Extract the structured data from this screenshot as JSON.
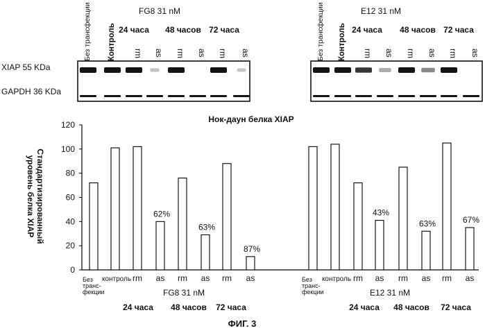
{
  "blots": [
    {
      "concentration": "FG8 31 nM",
      "lane_labels": [
        "Без трансфекции",
        "Контроль",
        "rm",
        "as",
        "rm",
        "as",
        "rm",
        "as"
      ],
      "group_labels": [
        "24 часа",
        "48 часов",
        "72 часа"
      ],
      "xiap_band_intensity": [
        1,
        1,
        1,
        0.05,
        1,
        0,
        1,
        0.02
      ],
      "gapdh_band_intensity": [
        1,
        1,
        1,
        1,
        1,
        1,
        1,
        1
      ]
    },
    {
      "concentration": "E12 31 nM",
      "lane_labels": [
        "Без трансфекции",
        "Контроль",
        "rm",
        "as",
        "rm",
        "as",
        "rm",
        "as"
      ],
      "group_labels": [
        "24 часа",
        "48 часов",
        "72 часа"
      ],
      "xiap_band_intensity": [
        1,
        1,
        0.85,
        0.35,
        1,
        0.5,
        1,
        0
      ],
      "gapdh_band_intensity": [
        1,
        1,
        1,
        1,
        1,
        1,
        1,
        1
      ]
    }
  ],
  "blot_row_labels": {
    "xiap": "XIAP 55 KDa",
    "gapdh": "GAPDH 36 KDa"
  },
  "chart_data": {
    "type": "bar",
    "title": "Нок-даун белка XIAP",
    "ylabel_lines": [
      "Стандартизированный",
      "уровень белка XIAP"
    ],
    "xlabel": "",
    "ylim": [
      0,
      120
    ],
    "yticks": [
      0,
      20,
      40,
      60,
      80,
      100,
      120
    ],
    "grid": false,
    "groups": [
      {
        "name": "FG8 31 nM",
        "categories": [
          "Без трансфекции",
          "контроль",
          "rm",
          "as",
          "rm",
          "as",
          "rm",
          "as"
        ],
        "category_display": [
          "Без\nтранс-\nфекции",
          "контроль",
          "rm",
          "as",
          "rm",
          "as",
          "rm",
          "as"
        ],
        "values": [
          72,
          101,
          102,
          40,
          76,
          29,
          88,
          11
        ],
        "annotations": [
          "",
          "",
          "",
          "62%",
          "",
          "63%",
          "",
          "87%"
        ],
        "time_labels": [
          "24 часа",
          "48 часов",
          "72 часа"
        ]
      },
      {
        "name": "E12 31 nM",
        "categories": [
          "Без трансфекции",
          "контроль",
          "rm",
          "as",
          "rm",
          "as",
          "rm",
          "as"
        ],
        "category_display": [
          "Без\nтранс-\nфекции",
          "контроль",
          "rm",
          "as",
          "rm",
          "as",
          "rm",
          "as"
        ],
        "values": [
          102,
          104,
          72,
          41,
          85,
          32,
          105,
          35
        ],
        "annotations": [
          "",
          "",
          "",
          "43%",
          "",
          "63%",
          "",
          "67%"
        ],
        "time_labels": [
          "24 часа",
          "48 часов",
          "72 часа"
        ]
      }
    ]
  },
  "figure_caption": "ФИГ. 3",
  "colors": {
    "band": "#141414",
    "bar_fill": "#ffffff",
    "bar_stroke": "#000000"
  }
}
